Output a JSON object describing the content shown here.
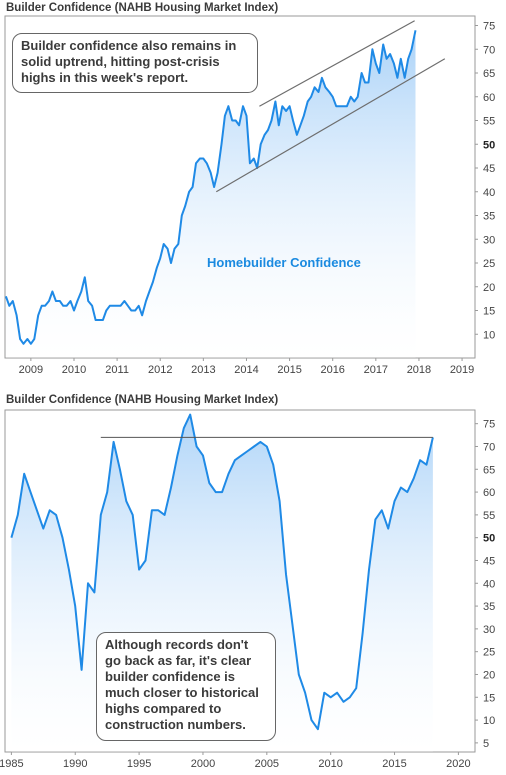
{
  "chart_data": [
    {
      "type": "area",
      "title": "Builder Confidence (NAHB Housing Market Index)",
      "series_label": "Homebuilder Confidence",
      "annotation": "Builder confidence also remains in solid uptrend, hitting post-crisis highs in this week's report.",
      "x_ticks": [
        "2009",
        "2010",
        "2011",
        "2012",
        "2013",
        "2014",
        "2015",
        "2016",
        "2017",
        "2018",
        "2019"
      ],
      "y_ticks": [
        "10",
        "15",
        "20",
        "25",
        "30",
        "35",
        "40",
        "45",
        "50",
        "55",
        "60",
        "65",
        "70",
        "75"
      ],
      "xlim": [
        2008.4,
        2019.3
      ],
      "ylim": [
        5,
        77
      ],
      "trendlines": [
        {
          "x": [
            2014.3,
            2017.9
          ],
          "y": [
            58,
            76
          ]
        },
        {
          "x": [
            2013.3,
            2018.6
          ],
          "y": [
            40,
            68
          ]
        }
      ],
      "x": [
        2008.42,
        2008.5,
        2008.58,
        2008.67,
        2008.75,
        2008.83,
        2008.92,
        2009.0,
        2009.08,
        2009.17,
        2009.25,
        2009.33,
        2009.42,
        2009.5,
        2009.58,
        2009.67,
        2009.75,
        2009.83,
        2009.92,
        2010.0,
        2010.08,
        2010.17,
        2010.25,
        2010.33,
        2010.42,
        2010.5,
        2010.58,
        2010.67,
        2010.75,
        2010.83,
        2010.92,
        2011.0,
        2011.08,
        2011.17,
        2011.25,
        2011.33,
        2011.42,
        2011.5,
        2011.58,
        2011.67,
        2011.75,
        2011.83,
        2011.92,
        2012.0,
        2012.08,
        2012.17,
        2012.25,
        2012.33,
        2012.42,
        2012.5,
        2012.58,
        2012.67,
        2012.75,
        2012.83,
        2012.92,
        2013.0,
        2013.08,
        2013.17,
        2013.25,
        2013.33,
        2013.42,
        2013.5,
        2013.58,
        2013.67,
        2013.75,
        2013.83,
        2013.92,
        2014.0,
        2014.08,
        2014.17,
        2014.25,
        2014.33,
        2014.42,
        2014.5,
        2014.58,
        2014.67,
        2014.75,
        2014.83,
        2014.92,
        2015.0,
        2015.08,
        2015.17,
        2015.25,
        2015.33,
        2015.42,
        2015.5,
        2015.58,
        2015.67,
        2015.75,
        2015.83,
        2015.92,
        2016.0,
        2016.08,
        2016.17,
        2016.25,
        2016.33,
        2016.42,
        2016.5,
        2016.58,
        2016.67,
        2016.75,
        2016.83,
        2016.92,
        2017.0,
        2017.08,
        2017.17,
        2017.25,
        2017.33,
        2017.42,
        2017.5,
        2017.58,
        2017.67,
        2017.75,
        2017.83,
        2017.92
      ],
      "y": [
        18,
        16,
        17,
        14,
        9,
        8,
        9,
        8,
        9,
        14,
        16,
        16,
        17,
        19,
        17,
        17,
        16,
        16,
        17,
        15,
        17,
        19,
        22,
        17,
        16,
        13,
        13,
        13,
        15,
        16,
        16,
        16,
        16,
        17,
        16,
        15,
        15,
        16,
        14,
        17,
        19,
        21,
        24,
        26,
        29,
        28,
        25,
        28,
        29,
        35,
        37,
        40,
        41,
        46,
        47,
        47,
        46,
        44,
        41,
        44,
        50,
        56,
        58,
        55,
        55,
        54,
        58,
        56,
        46,
        47,
        45,
        50,
        52,
        53,
        55,
        59,
        54,
        58,
        57,
        58,
        55,
        52,
        54,
        56,
        59,
        60,
        62,
        61,
        64,
        62,
        61,
        60,
        58,
        58,
        58,
        58,
        60,
        59,
        60,
        65,
        63,
        63,
        70,
        67,
        65,
        71,
        68,
        69,
        67,
        64,
        68,
        64,
        68,
        70,
        74
      ]
    },
    {
      "type": "area",
      "title": "Builder Confidence (NAHB Housing Market Index)",
      "annotation": "Although records don't go back as far, it's clear builder confidence is much closer to historical highs compared to construction numbers.",
      "x_ticks": [
        "1985",
        "1990",
        "1995",
        "2000",
        "2005",
        "2010",
        "2015",
        "2020"
      ],
      "y_ticks": [
        "5",
        "10",
        "15",
        "20",
        "25",
        "30",
        "35",
        "40",
        "45",
        "50",
        "55",
        "60",
        "65",
        "70",
        "75"
      ],
      "xlim": [
        1984.5,
        2021.3
      ],
      "ylim": [
        3,
        78
      ],
      "reference_line": {
        "x": [
          1992,
          2018
        ],
        "y": 72
      },
      "x": [
        1985,
        1985.5,
        1986,
        1986.5,
        1987,
        1987.5,
        1988,
        1988.5,
        1989,
        1989.5,
        1990,
        1990.5,
        1991,
        1991.5,
        1992,
        1992.5,
        1993,
        1993.5,
        1994,
        1994.5,
        1995,
        1995.5,
        1996,
        1996.5,
        1997,
        1997.5,
        1998,
        1998.5,
        1999,
        1999.5,
        2000,
        2000.5,
        2001,
        2001.5,
        2002,
        2002.5,
        2003,
        2003.5,
        2004,
        2004.5,
        2005,
        2005.5,
        2006,
        2006.5,
        2007,
        2007.5,
        2008,
        2008.5,
        2009,
        2009.5,
        2010,
        2010.5,
        2011,
        2011.5,
        2012,
        2012.5,
        2013,
        2013.5,
        2014,
        2014.5,
        2015,
        2015.5,
        2016,
        2016.5,
        2017,
        2017.5,
        2018
      ],
      "y": [
        50,
        55,
        64,
        60,
        56,
        52,
        56,
        55,
        50,
        43,
        35,
        21,
        40,
        38,
        55,
        60,
        71,
        65,
        58,
        55,
        43,
        45,
        56,
        56,
        55,
        61,
        68,
        74,
        77,
        70,
        68,
        62,
        60,
        60,
        64,
        67,
        68,
        69,
        70,
        71,
        70,
        66,
        58,
        42,
        31,
        20,
        16,
        10,
        8,
        16,
        15,
        16,
        14,
        15,
        17,
        29,
        43,
        54,
        56,
        52,
        58,
        61,
        60,
        63,
        67,
        66,
        72
      ]
    }
  ]
}
